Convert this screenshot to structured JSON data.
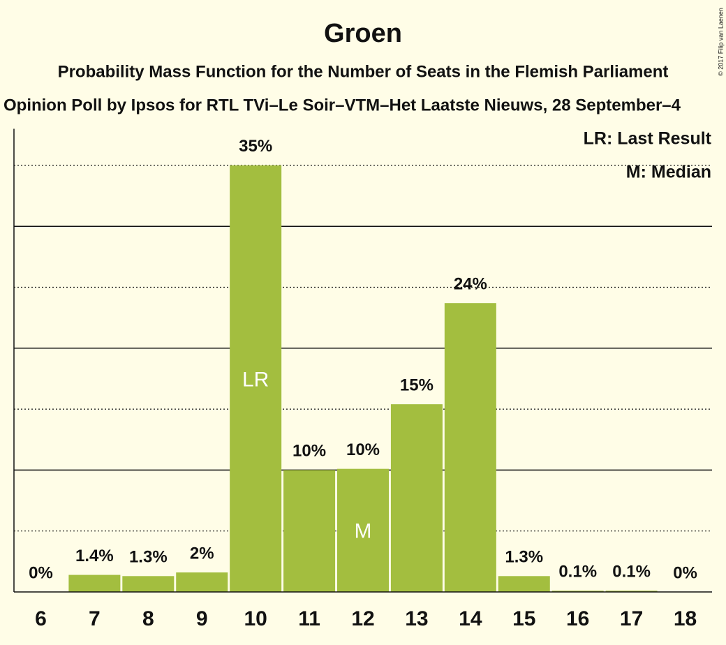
{
  "chart_data": {
    "type": "bar",
    "title": "Groen",
    "subtitle": "Probability Mass Function for the Number of Seats in the Flemish Parliament",
    "subtitle2": "Opinion Poll by Ipsos for RTL TVi–Le Soir–VTM–Het Laatste Nieuws, 28 September–4",
    "categories": [
      "6",
      "7",
      "8",
      "9",
      "10",
      "11",
      "12",
      "13",
      "14",
      "15",
      "16",
      "17",
      "18"
    ],
    "values": [
      0,
      1.4,
      1.3,
      1.6,
      35,
      10,
      10.1,
      15.4,
      23.7,
      1.3,
      0.1,
      0.1,
      0
    ],
    "value_labels": [
      "0%",
      "1.4%",
      "1.3%",
      "2%",
      "35%",
      "10%",
      "10%",
      "15%",
      "24%",
      "1.3%",
      "0.1%",
      "0.1%",
      "0%"
    ],
    "color": "#a3be3f",
    "ylim": [
      0,
      38
    ],
    "yticks": [
      5,
      10,
      15,
      20,
      25,
      30,
      35
    ],
    "grid": true,
    "annotations": [
      {
        "text": "LR",
        "category": "10"
      },
      {
        "text": "M",
        "category": "12"
      }
    ],
    "legend": [
      "LR: Last Result",
      "M: Median"
    ],
    "legend_position": "top-right",
    "copyright": "© 2017 Filip van Laenen"
  }
}
